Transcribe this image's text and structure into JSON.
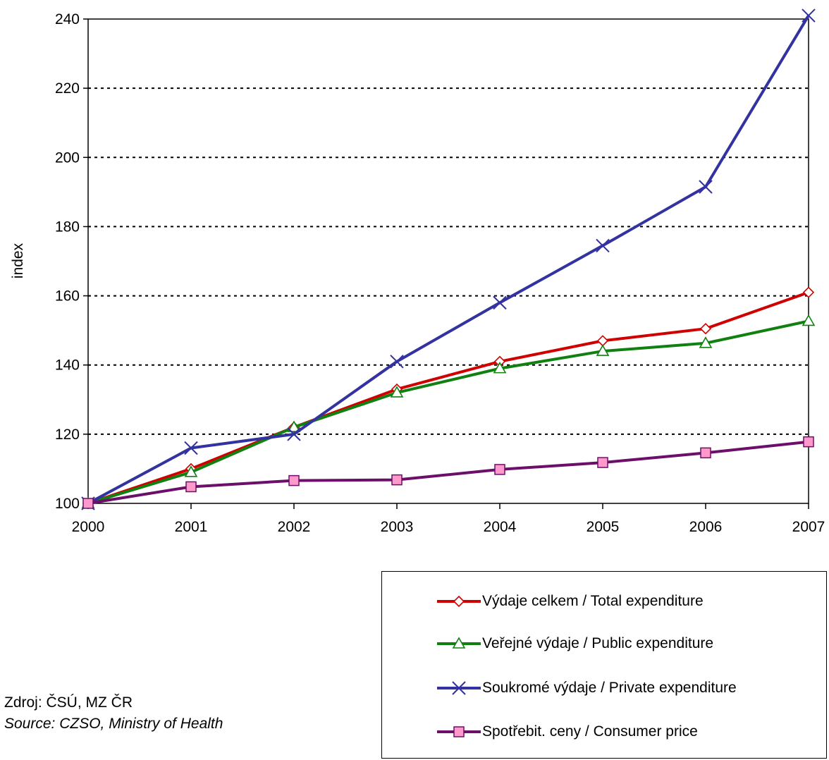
{
  "chart_data": {
    "type": "line",
    "x": [
      "2000",
      "2001",
      "2002",
      "2003",
      "2004",
      "2005",
      "2006",
      "2007"
    ],
    "ylabel": "index",
    "ylim": [
      100,
      240
    ],
    "yticks": [
      "100",
      "120",
      "140",
      "160",
      "180",
      "200",
      "220",
      "240"
    ],
    "grid": "horizontal-dotted",
    "series": [
      {
        "name": "Výdaje celkem / Total expenditure",
        "color": "#d00000",
        "marker": "diamond",
        "values": [
          100,
          110,
          122,
          133,
          141,
          147,
          150.5,
          161
        ]
      },
      {
        "name": "Veřejné výdaje / Public expenditure",
        "color": "#108010",
        "marker": "triangle",
        "values": [
          100,
          109,
          122,
          132,
          139,
          144,
          146.3,
          152.7
        ]
      },
      {
        "name": "Soukromé výdaje / Private expenditure",
        "color": "#3232a0",
        "marker": "x",
        "values": [
          100,
          116,
          120,
          141,
          158,
          174.5,
          191.5,
          241
        ]
      },
      {
        "name": "Spotřebit. ceny / Consumer price",
        "color": "#6b0f6b",
        "marker": "square",
        "values": [
          100,
          104.8,
          106.6,
          106.8,
          109.8,
          111.8,
          114.6,
          117.8
        ]
      }
    ]
  },
  "source": {
    "line1": "Zdroj: ČSÚ, MZ ČR",
    "line2": "Source: CZSO, Ministry of Health"
  }
}
